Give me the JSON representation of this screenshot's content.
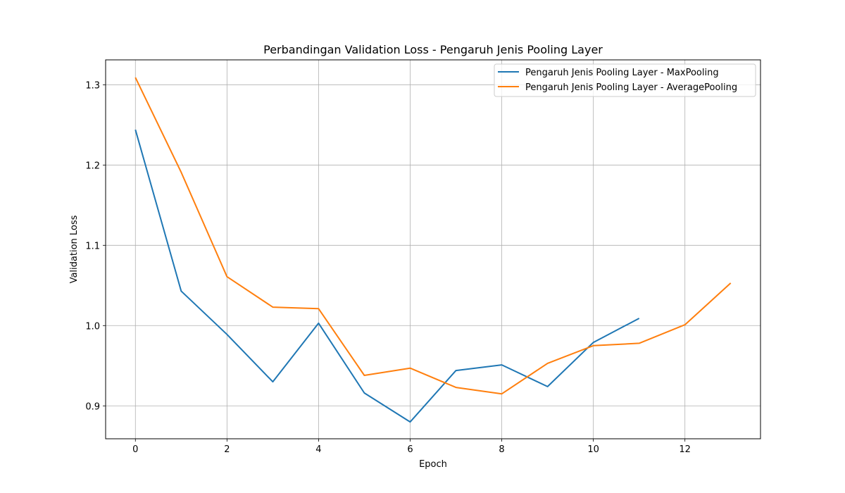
{
  "chart_data": {
    "type": "line",
    "title": "Perbandingan Validation Loss - Pengaruh Jenis Pooling Layer",
    "xlabel": "Epoch",
    "ylabel": "Validation Loss",
    "xlim": [
      -0.65,
      13.65
    ],
    "ylim": [
      0.859,
      1.331
    ],
    "xticks": [
      0,
      2,
      4,
      6,
      8,
      10,
      12
    ],
    "yticks": [
      0.9,
      1.0,
      1.1,
      1.2,
      1.3
    ],
    "ytick_labels": [
      "0.9",
      "1.0",
      "1.1",
      "1.2",
      "1.3"
    ],
    "grid": true,
    "legend_position": "top-right",
    "series": [
      {
        "name": "Pengaruh Jenis Pooling Layer - MaxPooling",
        "color": "#1f77b4",
        "x": [
          0,
          1,
          2,
          3,
          4,
          5,
          6,
          7,
          8,
          9,
          10,
          11
        ],
        "y": [
          1.244,
          1.043,
          0.989,
          0.93,
          1.003,
          0.916,
          0.88,
          0.944,
          0.951,
          0.924,
          0.979,
          1.009
        ]
      },
      {
        "name": "Pengaruh Jenis Pooling Layer - AveragePooling",
        "color": "#ff7f0e",
        "x": [
          0,
          1,
          2,
          3,
          4,
          5,
          6,
          7,
          8,
          9,
          10,
          11,
          12,
          13
        ],
        "y": [
          1.309,
          1.191,
          1.061,
          1.023,
          1.021,
          0.938,
          0.947,
          0.923,
          0.915,
          0.953,
          0.975,
          0.978,
          1.001,
          1.053
        ]
      }
    ]
  }
}
